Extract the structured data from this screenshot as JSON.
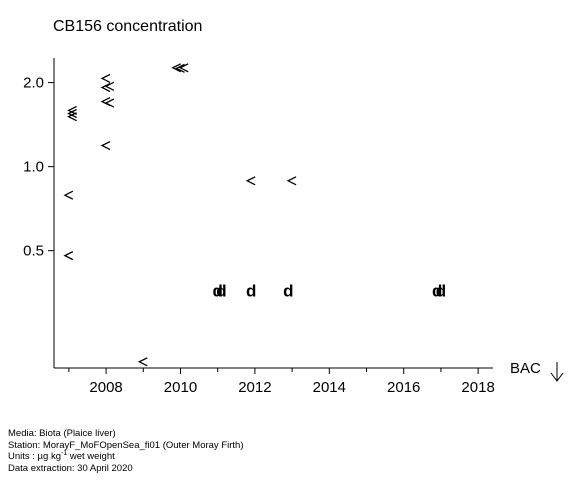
{
  "chart_data": {
    "type": "scatter",
    "title": "CB156 concentration",
    "xlabel": "",
    "ylabel": "",
    "y_scale": "log",
    "xlim": [
      2006.6,
      2018.4
    ],
    "ylim": [
      0.19,
      2.45
    ],
    "x_ticks": [
      2008,
      2010,
      2012,
      2014,
      2016,
      2018
    ],
    "x_tick_labels": [
      "2008",
      "2010",
      "2012",
      "2014",
      "2016",
      "2018"
    ],
    "y_ticks": [
      0.5,
      1.0,
      2.0
    ],
    "y_tick_labels": [
      "0.5",
      "1.0",
      "2.0"
    ],
    "grid": false,
    "threshold": {
      "name": "BAC",
      "direction": "below"
    },
    "points": [
      {
        "x": 2007.0,
        "y": 0.48,
        "marker": "<"
      },
      {
        "x": 2007.0,
        "y": 0.79,
        "marker": "<"
      },
      {
        "x": 2007.1,
        "y": 1.51,
        "marker": "<"
      },
      {
        "x": 2007.1,
        "y": 1.55,
        "marker": "<"
      },
      {
        "x": 2007.1,
        "y": 1.59,
        "marker": "<"
      },
      {
        "x": 2008.0,
        "y": 1.19,
        "marker": "<"
      },
      {
        "x": 2008.0,
        "y": 1.71,
        "marker": "<"
      },
      {
        "x": 2008.1,
        "y": 1.69,
        "marker": "<"
      },
      {
        "x": 2008.0,
        "y": 1.92,
        "marker": "<"
      },
      {
        "x": 2008.1,
        "y": 1.94,
        "marker": "<"
      },
      {
        "x": 2008.0,
        "y": 2.07,
        "marker": "<"
      },
      {
        "x": 2009.0,
        "y": 0.2,
        "marker": "<"
      },
      {
        "x": 2009.9,
        "y": 2.26,
        "marker": "<"
      },
      {
        "x": 2010.0,
        "y": 2.25,
        "marker": "<"
      },
      {
        "x": 2010.1,
        "y": 2.26,
        "marker": "<"
      },
      {
        "x": 2011.0,
        "y": 0.36,
        "marker": "d"
      },
      {
        "x": 2011.1,
        "y": 0.36,
        "marker": "d"
      },
      {
        "x": 2011.9,
        "y": 0.89,
        "marker": "<"
      },
      {
        "x": 2011.9,
        "y": 0.36,
        "marker": "d"
      },
      {
        "x": 2012.9,
        "y": 0.36,
        "marker": "d"
      },
      {
        "x": 2013.0,
        "y": 0.89,
        "marker": "<"
      },
      {
        "x": 2016.9,
        "y": 0.36,
        "marker": "d"
      },
      {
        "x": 2017.0,
        "y": 0.36,
        "marker": "d"
      }
    ]
  },
  "footer": {
    "media": "Media: Biota (Plaice liver)",
    "station": "Station: MorayF_MoFOpenSea_fi01 (Outer Moray Firth)",
    "units_prefix": "Units : µg kg",
    "units_sup": "-1",
    "units_suffix": " wet weight",
    "extraction": "Data extraction: 30 April 2020"
  }
}
